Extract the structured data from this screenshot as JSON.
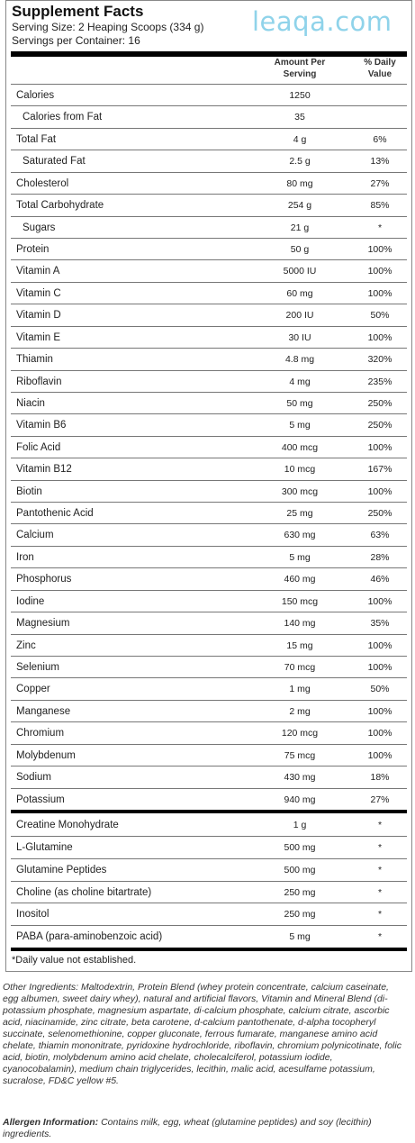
{
  "watermark": "leaqa.com",
  "title": "Supplement Facts",
  "serving_size": "Serving Size: 2 Heaping Scoops (334 g)",
  "servings_per_container": "Servings per Container: 16",
  "headers": {
    "amount_line1": "Amount Per",
    "amount_line2": "Serving",
    "dv_line1": "% Daily",
    "dv_line2": "Value"
  },
  "rows": [
    {
      "name": "Calories",
      "amount": "1250",
      "dv": ""
    },
    {
      "name": "Calories from Fat",
      "amount": "35",
      "dv": "",
      "indent": true
    },
    {
      "name": "Total Fat",
      "amount": "4 g",
      "dv": "6%"
    },
    {
      "name": "Saturated Fat",
      "amount": "2.5 g",
      "dv": "13%",
      "indent": true
    },
    {
      "name": "Cholesterol",
      "amount": "80 mg",
      "dv": "27%"
    },
    {
      "name": "Total Carbohydrate",
      "amount": "254 g",
      "dv": "85%"
    },
    {
      "name": "Sugars",
      "amount": "21 g",
      "dv": "*",
      "indent": true
    },
    {
      "name": "Protein",
      "amount": "50 g",
      "dv": "100%"
    },
    {
      "name": "Vitamin A",
      "amount": "5000 IU",
      "dv": "100%"
    },
    {
      "name": "Vitamin C",
      "amount": "60 mg",
      "dv": "100%"
    },
    {
      "name": "Vitamin D",
      "amount": "200 IU",
      "dv": "50%"
    },
    {
      "name": "Vitamin E",
      "amount": "30 IU",
      "dv": "100%"
    },
    {
      "name": "Thiamin",
      "amount": "4.8 mg",
      "dv": "320%"
    },
    {
      "name": "Riboflavin",
      "amount": "4 mg",
      "dv": "235%"
    },
    {
      "name": "Niacin",
      "amount": "50 mg",
      "dv": "250%"
    },
    {
      "name": "Vitamin B6",
      "amount": "5 mg",
      "dv": "250%"
    },
    {
      "name": "Folic Acid",
      "amount": "400 mcg",
      "dv": "100%"
    },
    {
      "name": "Vitamin B12",
      "amount": "10 mcg",
      "dv": "167%"
    },
    {
      "name": "Biotin",
      "amount": "300 mcg",
      "dv": "100%"
    },
    {
      "name": "Pantothenic Acid",
      "amount": "25 mg",
      "dv": "250%"
    },
    {
      "name": "Calcium",
      "amount": "630 mg",
      "dv": "63%"
    },
    {
      "name": "Iron",
      "amount": "5 mg",
      "dv": "28%"
    },
    {
      "name": "Phosphorus",
      "amount": "460 mg",
      "dv": "46%"
    },
    {
      "name": "Iodine",
      "amount": "150 mcg",
      "dv": "100%"
    },
    {
      "name": "Magnesium",
      "amount": "140 mg",
      "dv": "35%"
    },
    {
      "name": "Zinc",
      "amount": "15 mg",
      "dv": "100%"
    },
    {
      "name": "Selenium",
      "amount": "70 mcg",
      "dv": "100%"
    },
    {
      "name": "Copper",
      "amount": "1 mg",
      "dv": "50%"
    },
    {
      "name": "Manganese",
      "amount": "2 mg",
      "dv": "100%"
    },
    {
      "name": "Chromium",
      "amount": "120 mcg",
      "dv": "100%"
    },
    {
      "name": "Molybdenum",
      "amount": "75 mcg",
      "dv": "100%"
    },
    {
      "name": "Sodium",
      "amount": "430 mg",
      "dv": "18%"
    },
    {
      "name": "Potassium",
      "amount": "940 mg",
      "dv": "27%"
    }
  ],
  "rows2": [
    {
      "name": "Creatine Monohydrate",
      "amount": "1 g",
      "dv": "*"
    },
    {
      "name": "L-Glutamine",
      "amount": "500 mg",
      "dv": "*"
    },
    {
      "name": "Glutamine Peptides",
      "amount": "500 mg",
      "dv": "*"
    },
    {
      "name": "Choline (as choline bitartrate)",
      "amount": "250 mg",
      "dv": "*"
    },
    {
      "name": "Inositol",
      "amount": "250 mg",
      "dv": "*"
    },
    {
      "name": "PABA (para-aminobenzoic acid)",
      "amount": "5 mg",
      "dv": "*"
    }
  ],
  "footnote": "*Daily value not established.",
  "other_ingredients": "Other Ingredients: Maltodextrin, Protein Blend (whey protein concentrate, calcium caseinate, egg albumen, sweet dairy whey), natural and artificial flavors, Vitamin and Mineral Blend (di-potassium phosphate, magnesium aspartate, di-calcium phosphate, calcium citrate, ascorbic acid, niacinamide, zinc citrate, beta carotene, d-calcium pantothenate, d-alpha tocopheryl succinate, selenomethionine, copper gluconate, ferrous fumarate, manganese amino acid chelate, thiamin mononitrate, pyridoxine hydrochloride, riboflavin, chromium polynicotinate, folic acid, biotin, molybdenum amino acid chelate, cholecalciferol, potassium iodide, cyanocobalamin), medium chain triglycerides, lecithin, malic acid, acesulfame potassium, sucralose, FD&C yellow #5.",
  "allergen_label": "Allergen Information:",
  "allergen_text": " Contains milk, egg, wheat (glutamine peptides) and soy (lecithin) ingredients."
}
